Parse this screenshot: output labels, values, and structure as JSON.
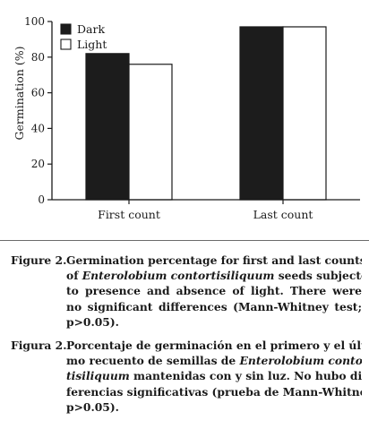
{
  "chart_data": {
    "type": "bar",
    "categories": [
      "First count",
      "Last count"
    ],
    "series": [
      {
        "name": "Dark",
        "values": [
          82,
          97
        ],
        "color": "#1c1c1c"
      },
      {
        "name": "Light",
        "values": [
          76,
          97
        ],
        "color": "#ffffff"
      }
    ],
    "ylabel": "Germination (%)",
    "xlabel": "",
    "ylim": [
      0,
      100
    ],
    "yticks": [
      0,
      20,
      40,
      60,
      80,
      100
    ],
    "legend": "top-left",
    "grid": false
  },
  "captions": [
    {
      "label": "Figure 2.",
      "lines": [
        [
          {
            "t": "Germination percentage for first and last counts"
          }
        ],
        [
          {
            "t": "of "
          },
          {
            "t": "Enterolobium contortisiliquum",
            "i": true
          },
          {
            "t": " seeds subjected"
          }
        ],
        [
          {
            "t": "to presence and absence of light. There were"
          }
        ],
        [
          {
            "t": "no significant differences (Mann-Whitney test;"
          }
        ],
        [
          {
            "t": "p>0.05)."
          }
        ]
      ]
    },
    {
      "label": "Figura 2.",
      "lines": [
        [
          {
            "t": "Porcentaje de germinación en el primero y el últi-"
          }
        ],
        [
          {
            "t": "mo recuento de semillas de "
          },
          {
            "t": "Enterolobium contor-",
            "i": true
          }
        ],
        [
          {
            "t": "tisiliquum",
            "i": true
          },
          {
            "t": " mantenidas con y sin luz. No hubo di-"
          }
        ],
        [
          {
            "t": "ferencias significativas (prueba de Mann-Whitney;"
          }
        ],
        [
          {
            "t": "p>0.05)."
          }
        ]
      ]
    }
  ]
}
